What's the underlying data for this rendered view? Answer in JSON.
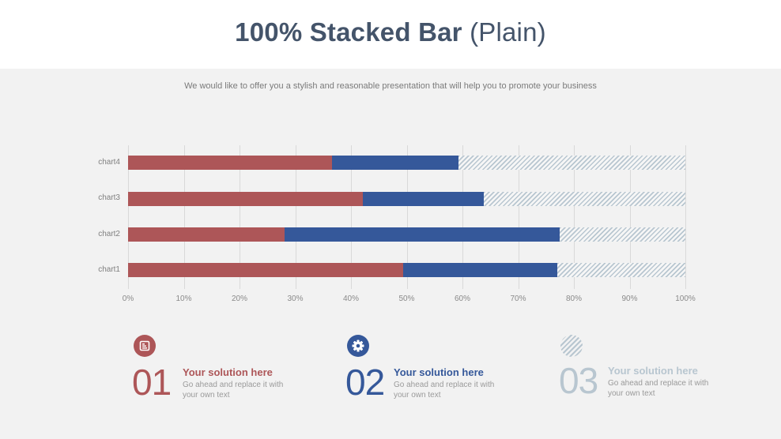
{
  "header": {
    "title_bold": "100% Stacked Bar",
    "title_light": " (Plain)",
    "subtitle": "We would like to offer you a stylish and reasonable presentation that will help you to promote your business"
  },
  "colors": {
    "series1": "#ad5658",
    "series2": "#35589a",
    "series3": "#b8c6d0",
    "title": "#44546a",
    "background": "#f2f2f2"
  },
  "chart_data": {
    "type": "bar",
    "orientation": "horizontal",
    "stacked": "100%",
    "title": "100% Stacked Bar (Plain)",
    "xlabel": "",
    "ylabel": "",
    "categories": [
      "chart1",
      "chart2",
      "chart3",
      "chart4"
    ],
    "series": [
      {
        "name": "01",
        "color": "#ad5658",
        "values": [
          49.4,
          28.1,
          42.1,
          36.6
        ]
      },
      {
        "name": "02",
        "color": "#35589a",
        "values": [
          27.6,
          49.3,
          21.7,
          22.7
        ]
      },
      {
        "name": "03",
        "color": "hatched #b8c6d0",
        "values": [
          23.0,
          22.6,
          36.2,
          40.7
        ]
      }
    ],
    "xlim": [
      0,
      100
    ],
    "xticks": [
      "0%",
      "10%",
      "20%",
      "30%",
      "40%",
      "50%",
      "60%",
      "70%",
      "80%",
      "90%",
      "100%"
    ],
    "grid": "vertical",
    "legend": "none (see cards below)"
  },
  "rows": [
    {
      "label": "chart4",
      "a": 36.6,
      "b": 22.7
    },
    {
      "label": "chart3",
      "a": 42.1,
      "b": 21.7
    },
    {
      "label": "chart2",
      "a": 28.1,
      "b": 49.3
    },
    {
      "label": "chart1",
      "a": 49.4,
      "b": 27.6
    }
  ],
  "ticks": [
    "0%",
    "10%",
    "20%",
    "30%",
    "40%",
    "50%",
    "60%",
    "70%",
    "80%",
    "90%",
    "100%"
  ],
  "cards": [
    {
      "number": "01",
      "heading": "Your solution here",
      "text": "Go ahead and replace it with your own text",
      "icon": "document-icon",
      "color": "#ad5658"
    },
    {
      "number": "02",
      "heading": "Your solution here",
      "text": "Go ahead and replace it with your own text",
      "icon": "gear-icon",
      "color": "#35589a"
    },
    {
      "number": "03",
      "heading": "Your solution here",
      "text": "Go ahead and replace it with your own text",
      "icon": "hatched-circle-icon",
      "color": "#b8c6d0"
    }
  ]
}
